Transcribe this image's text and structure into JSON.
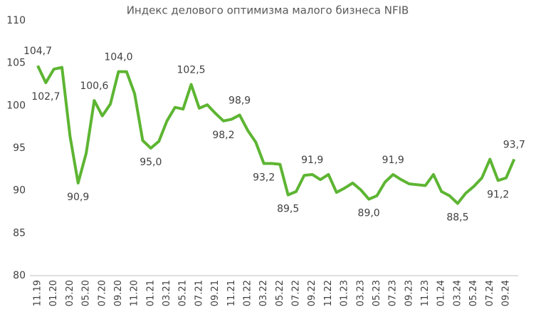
{
  "chart_data": {
    "type": "line",
    "title": "Индекс делового оптимизма малого бизнеса NFIB",
    "categories": [
      "11.19",
      null,
      "01.20",
      null,
      "03.20",
      null,
      "05.20",
      null,
      "07.20",
      null,
      "09.20",
      null,
      "11.20",
      null,
      "01.21",
      null,
      "03.21",
      null,
      "05.21",
      null,
      "07.21",
      null,
      "09.21",
      null,
      "11.21",
      null,
      "01.22",
      null,
      "03.22",
      null,
      "05.22",
      null,
      "07.22",
      null,
      "09.22",
      null,
      "11.22",
      null,
      "01.23",
      null,
      "03.23",
      null,
      "05.23",
      null,
      "07.23",
      null,
      "09.23",
      null,
      "11.23",
      null,
      "01.24",
      null,
      "03.24",
      null,
      "05.24",
      null,
      "07.24",
      null,
      "09.24",
      null
    ],
    "series": [
      {
        "color": "#5db532",
        "values": [
          104.7,
          102.7,
          104.3,
          104.5,
          96.4,
          90.9,
          94.4,
          100.6,
          98.8,
          100.2,
          104.0,
          104.0,
          101.4,
          95.9,
          95.0,
          95.8,
          98.2,
          99.8,
          99.6,
          102.5,
          99.7,
          100.1,
          99.1,
          98.2,
          98.4,
          98.9,
          97.1,
          95.7,
          93.2,
          93.2,
          93.1,
          89.5,
          89.9,
          91.8,
          91.9,
          91.3,
          91.9,
          89.8,
          90.3,
          90.9,
          90.1,
          89.0,
          89.4,
          91.0,
          91.9,
          91.3,
          90.8,
          90.7,
          90.6,
          91.9,
          89.9,
          89.4,
          88.5,
          89.7,
          90.5,
          91.5,
          93.7,
          91.2,
          91.5,
          93.7
        ],
        "value_labels": [
          "104,7",
          "102,7",
          null,
          null,
          null,
          "90,9",
          null,
          "100,6",
          null,
          null,
          "104,0",
          null,
          null,
          null,
          "95,0",
          null,
          null,
          null,
          null,
          "102,5",
          null,
          null,
          null,
          "98,2",
          null,
          "98,9",
          null,
          null,
          "93,2",
          null,
          null,
          "89,5",
          null,
          null,
          "91,9",
          null,
          null,
          null,
          null,
          null,
          null,
          "89,0",
          null,
          null,
          "91,9",
          null,
          null,
          null,
          null,
          null,
          null,
          null,
          "88,5",
          null,
          null,
          null,
          null,
          "91,2",
          null,
          "93,7"
        ]
      }
    ],
    "ylim": [
      80,
      110
    ],
    "yticks": [
      80,
      85,
      90,
      95,
      100,
      105,
      110
    ],
    "grid": false
  }
}
